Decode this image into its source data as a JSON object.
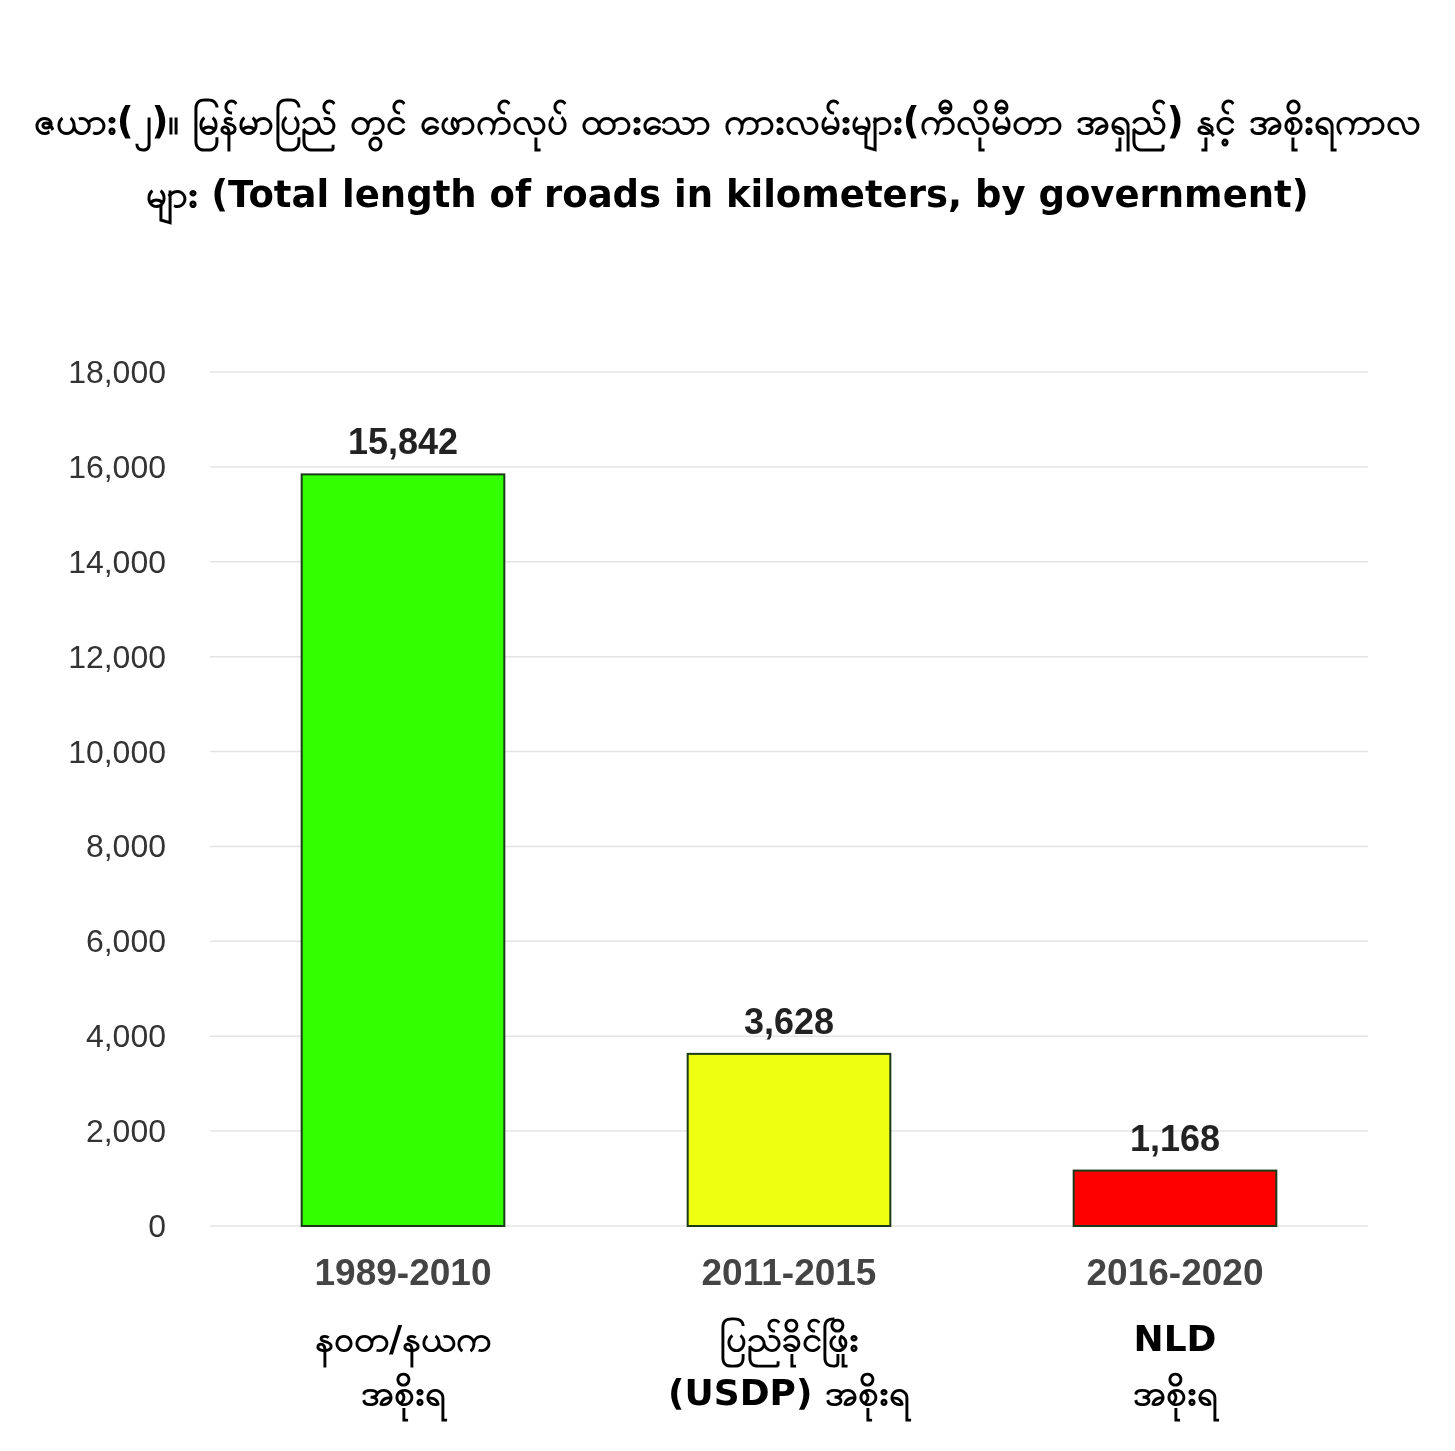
{
  "chart_data": {
    "type": "bar",
    "title": "ဇယား(၂)။ မြန်မာပြည် တွင် ဖောက်လုပ် ထားသော ကားလမ်းများ(ကီလိုမီတာ အရှည်) နှင့် အစိုးရကာလများ (Total length of roads in kilometers, by government)",
    "categories": [
      "1989-2010\nနဝတ/နယက\nအစိုးရ",
      "2011-2015\nပြည်ခိုင်ဖြိုး\n(USDP) အစိုးရ",
      "2016-2020\nNLD\nအစိုးရ"
    ],
    "values": [
      15842,
      3628,
      1168
    ],
    "colors": [
      "#33ff00",
      "#eeff11",
      "#ff0000"
    ],
    "value_labels": [
      "15,842",
      "3,628",
      "1,168"
    ],
    "ylim": [
      0,
      18000
    ],
    "yticks": [
      0,
      {
        "value": 2000,
        "label": "2,000"
      },
      {
        "value": 4000,
        "label": "4,000"
      },
      {
        "value": 6000,
        "label": "6,000"
      },
      {
        "value": 8000,
        "label": "8,000"
      },
      {
        "value": 10000,
        "label": "10,000"
      },
      {
        "value": 12000,
        "label": "12,000"
      },
      {
        "value": 14000,
        "label": "14,000"
      },
      {
        "value": 16000,
        "label": "16,000"
      },
      {
        "value": 18000,
        "label": "18,000"
      }
    ],
    "grid": "y"
  }
}
